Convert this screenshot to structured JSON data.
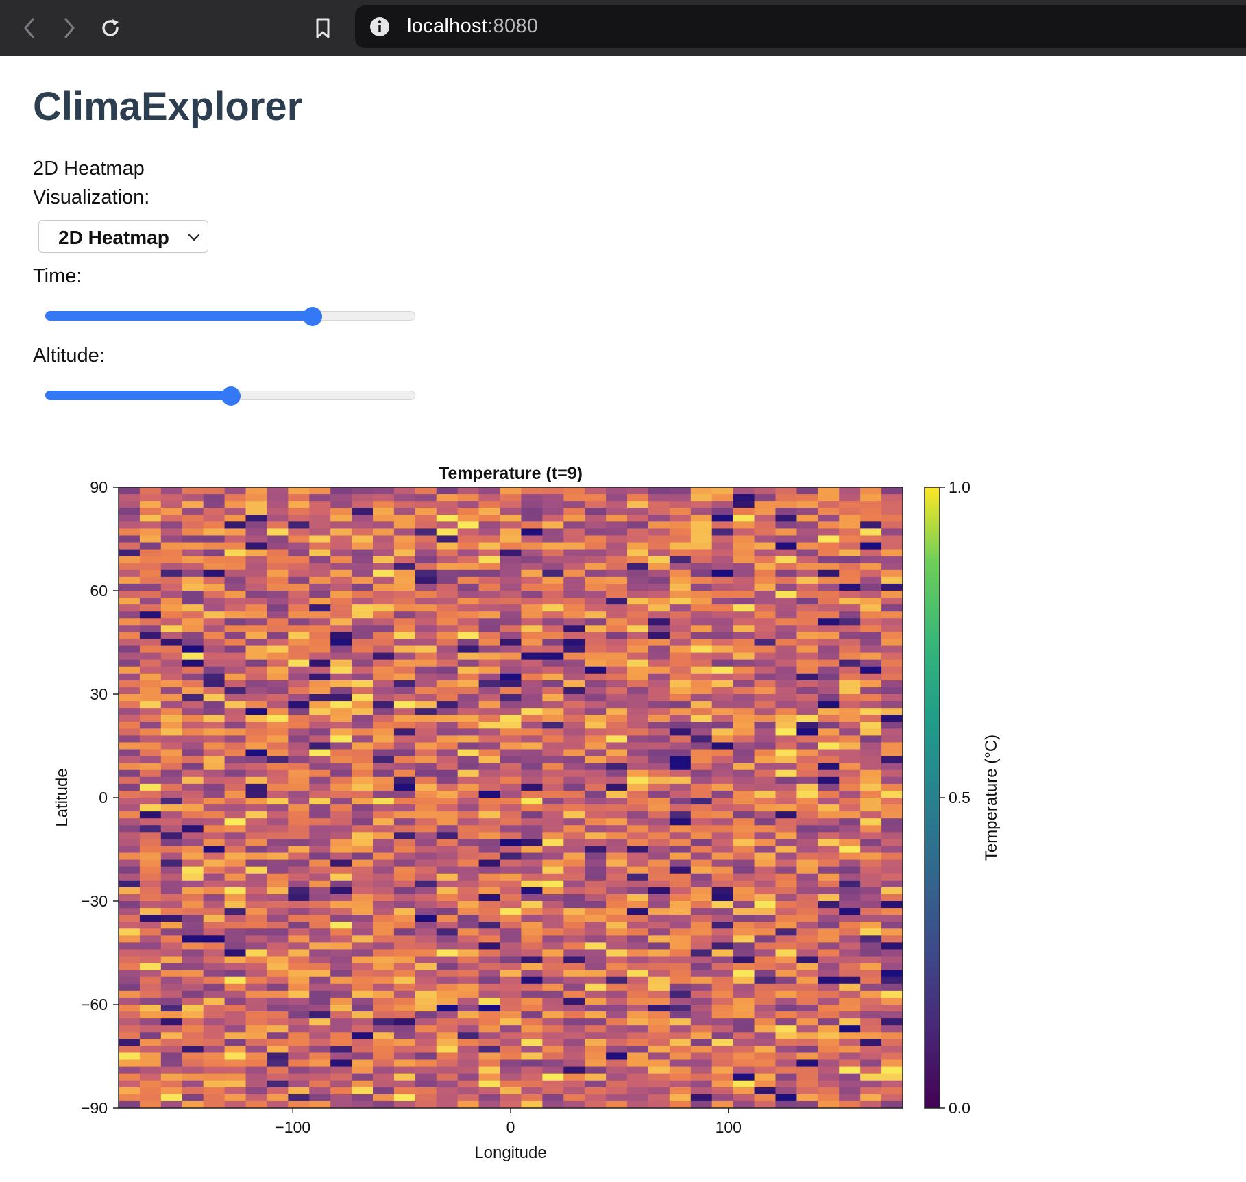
{
  "browser": {
    "url_host": "localhost",
    "url_port": ":8080",
    "icons": [
      "back-arrow-icon",
      "forward-arrow-icon",
      "reload-icon",
      "bookmark-icon",
      "info-icon"
    ]
  },
  "page": {
    "title": "ClimaExplorer",
    "current_view_label": "2D Heatmap",
    "visualization_label": "Visualization:",
    "visualization_select_value": "2D Heatmap",
    "time_label": "Time:",
    "time_slider_fraction": 0.72,
    "altitude_label": "Altitude:",
    "altitude_slider_fraction": 0.5
  },
  "colors": {
    "slider_accent": "#3478f6",
    "title": "#2c3e50"
  },
  "chart_data": {
    "type": "heatmap",
    "title": "Temperature (t=9)",
    "xlabel": "Longitude",
    "ylabel": "Latitude",
    "xlim": [
      -180,
      180
    ],
    "ylim": [
      -90,
      90
    ],
    "xticks": [
      -100,
      0,
      100
    ],
    "xtick_labels": [
      "−100",
      "0",
      "100"
    ],
    "yticks": [
      90,
      60,
      30,
      0,
      -30,
      -60,
      -90
    ],
    "ytick_labels": [
      "90",
      "60",
      "30",
      "0",
      "−30",
      "−60",
      "−90"
    ],
    "colorbar_label": "Temperature (°C)",
    "colorbar_range": [
      0.0,
      1.0
    ],
    "colorbar_ticks": [
      0.0,
      0.5,
      1.0
    ],
    "colorbar_tick_labels": [
      "0.0",
      "0.5",
      "1.0"
    ],
    "colormap": "viridis (colorbar) / plasma-like (cells)",
    "n_lon": 37,
    "n_lat": 90,
    "seed": 9,
    "value_note": "random values in [0.2, 1.0] per cell"
  }
}
